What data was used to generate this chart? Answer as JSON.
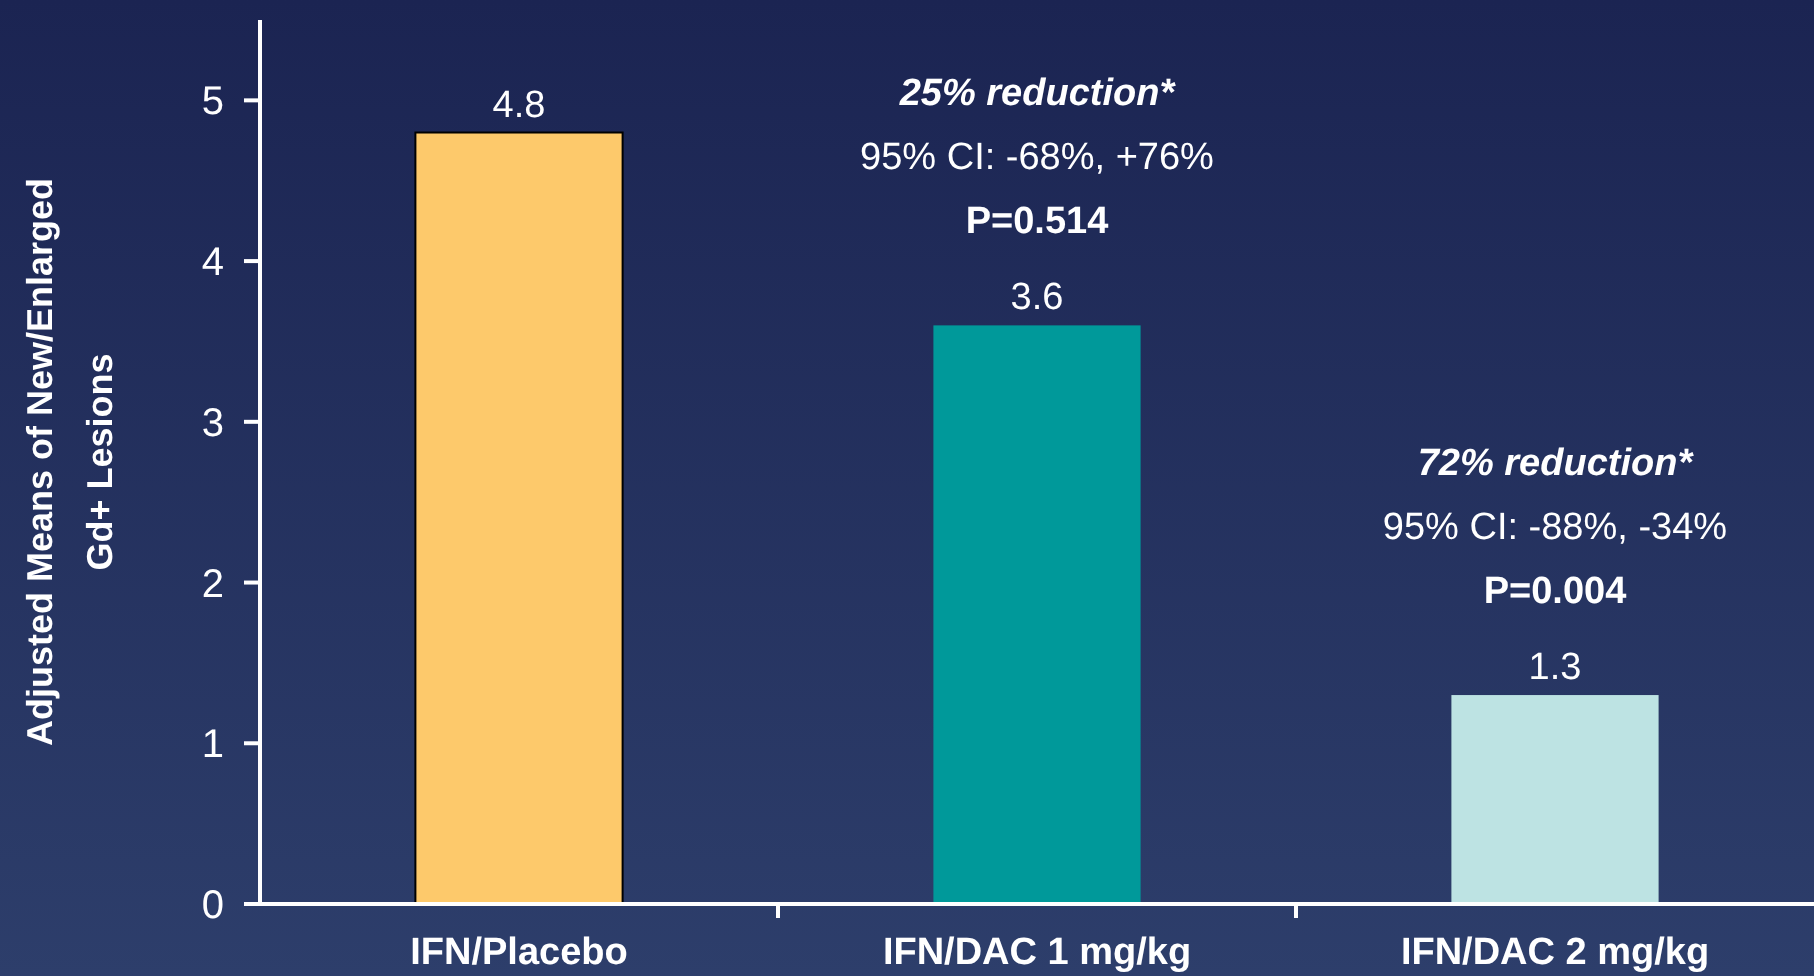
{
  "chart_data": {
    "type": "bar",
    "ylabel": "Adjusted Means of New/Enlarged Gd+ Lesions",
    "categories": [
      "IFN/Placebo",
      "IFN/DAC 1 mg/kg",
      "IFN/DAC 2 mg/kg"
    ],
    "values": [
      4.8,
      3.6,
      1.3
    ],
    "colors": [
      "#fdc96b",
      "#00999a",
      "#bde3e3"
    ],
    "ylim": [
      0,
      5.5
    ],
    "yticks": [
      0,
      1,
      2,
      3,
      4,
      5
    ],
    "grid": false,
    "data_labels": true,
    "annotations": [
      "25% reduction*",
      "95% CI: -68%, +76%",
      "P=0.514",
      "72% reduction*",
      "95% CI: -88%, -34%",
      "P=0.004"
    ]
  }
}
